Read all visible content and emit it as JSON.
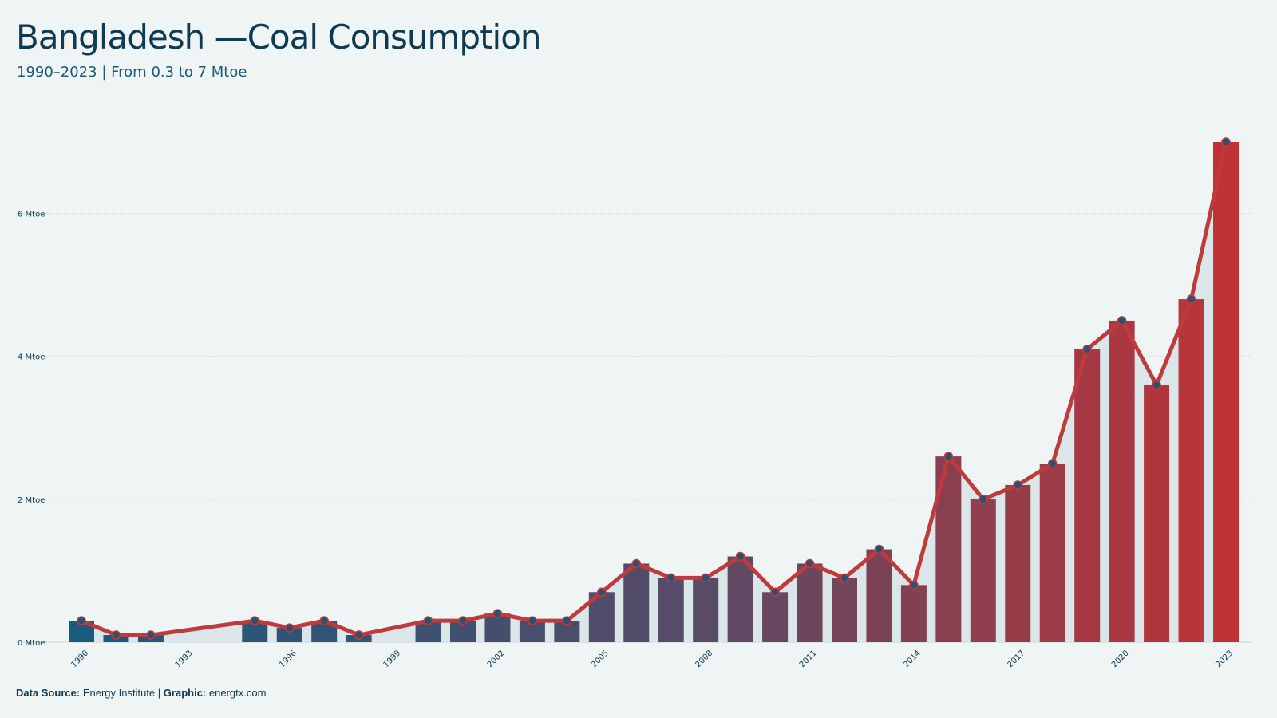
{
  "header": {
    "title": "Bangladesh  —Coal Consumption",
    "subtitle": "1990–2023 | From 0.3 to 7 Mtoe"
  },
  "footer": {
    "source_label": "Data Source:",
    "source_value": "Energy Institute",
    "separator": "|",
    "graphic_label": "Graphic:",
    "graphic_value": "energtx.com"
  },
  "colors": {
    "background": "#eff5f5",
    "bar_start": "#1a5a7e",
    "bar_mid": "#5a4a66",
    "bar_end": "#bf3336",
    "line": "#bf3a3c",
    "area": "#d7e4e5",
    "point_fill": "#2e506f"
  },
  "chart_data": {
    "type": "bar",
    "unit": "Mtoe",
    "x": [
      1990,
      1991,
      1992,
      1993,
      1994,
      1995,
      1996,
      1997,
      1998,
      1999,
      2000,
      2001,
      2002,
      2003,
      2004,
      2005,
      2006,
      2007,
      2008,
      2009,
      2010,
      2011,
      2012,
      2013,
      2014,
      2015,
      2016,
      2017,
      2018,
      2019,
      2020,
      2021,
      2022,
      2023
    ],
    "values": [
      0.3,
      0.1,
      0.1,
      null,
      null,
      0.3,
      0.2,
      0.3,
      0.1,
      null,
      0.3,
      0.3,
      0.4,
      0.3,
      0.3,
      0.7,
      1.1,
      0.9,
      0.9,
      1.2,
      0.7,
      1.1,
      0.9,
      1.3,
      0.8,
      2.6,
      2.0,
      2.2,
      2.5,
      4.1,
      4.5,
      3.6,
      4.8,
      7.0
    ],
    "x_ticks": [
      1990,
      1993,
      1996,
      1999,
      2002,
      2005,
      2008,
      2011,
      2014,
      2017,
      2020,
      2023
    ],
    "y_ticks": [
      0,
      2,
      4,
      6
    ],
    "y_tick_labels": [
      "0 Mtoe",
      "2 Mtoe",
      "4 Mtoe",
      "6 Mtoe"
    ],
    "ylim": [
      0,
      7.2
    ],
    "grid": true,
    "overlay": "line with markers and shaded area"
  }
}
